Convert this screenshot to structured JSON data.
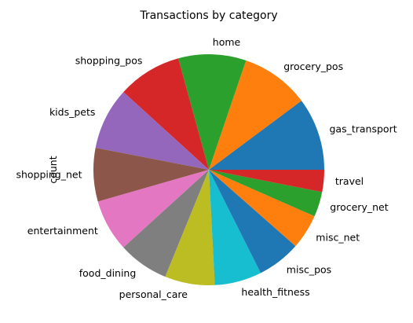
{
  "chart_data": {
    "type": "pie",
    "title": "Transactions by category",
    "ylabel": "count",
    "start_angle_deg": 0,
    "direction": "counterclockwise",
    "categories": [
      "gas_transport",
      "grocery_pos",
      "home",
      "shopping_pos",
      "kids_pets",
      "shopping_net",
      "entertainment",
      "food_dining",
      "personal_care",
      "health_fitness",
      "misc_pos",
      "misc_net",
      "grocery_net",
      "travel"
    ],
    "values": [
      10.2,
      9.6,
      9.5,
      9.0,
      8.7,
      7.5,
      7.3,
      7.1,
      7.0,
      6.6,
      6.1,
      4.9,
      3.5,
      3.1
    ],
    "colors": [
      "#1f77b4",
      "#ff7f0e",
      "#2ca02c",
      "#d62728",
      "#9467bd",
      "#8c564b",
      "#e377c2",
      "#7f7f7f",
      "#bcbd22",
      "#17becf",
      "#1f77b4",
      "#ff7f0e",
      "#2ca02c",
      "#d62728"
    ]
  }
}
